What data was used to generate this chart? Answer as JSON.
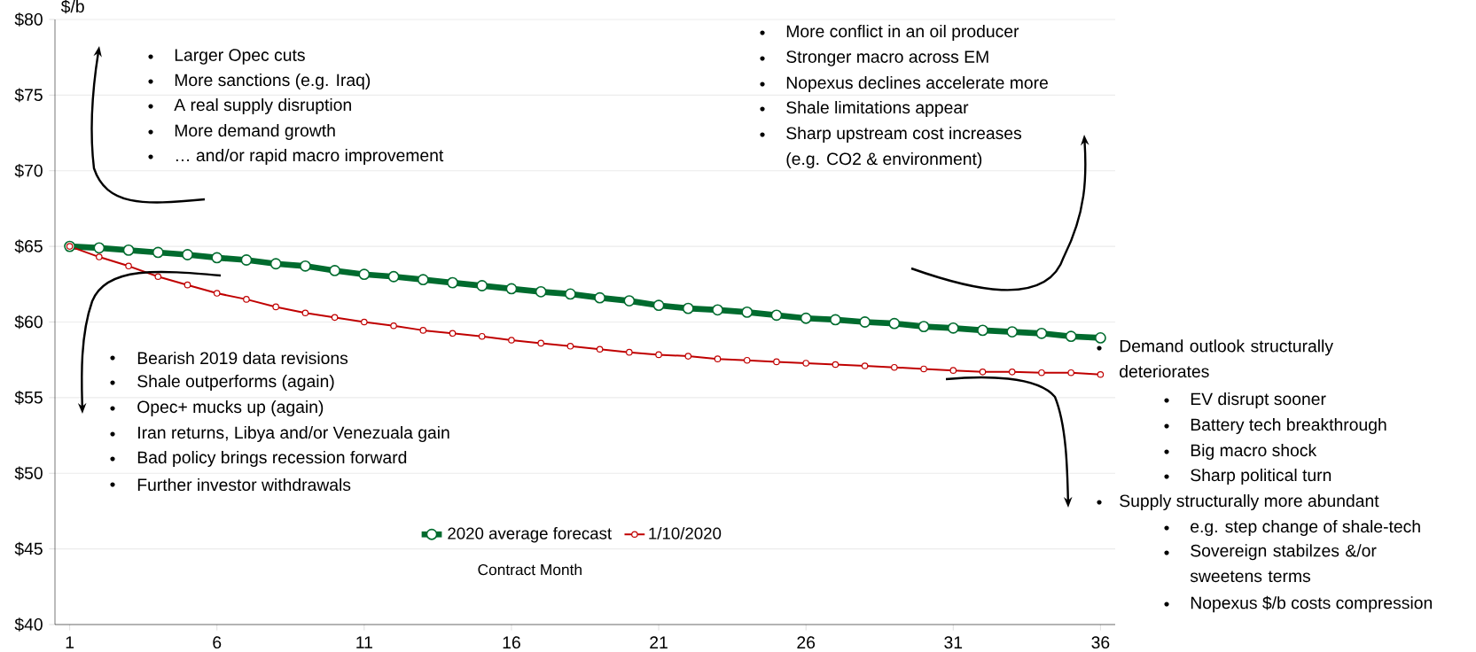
{
  "chart_data": {
    "type": "line",
    "xlabel": "Contract Month",
    "ylabel": "$/b",
    "x": [
      1,
      2,
      3,
      4,
      5,
      6,
      7,
      8,
      9,
      10,
      11,
      12,
      13,
      14,
      15,
      16,
      17,
      18,
      19,
      20,
      21,
      22,
      23,
      24,
      25,
      26,
      27,
      28,
      29,
      30,
      31,
      32,
      33,
      34,
      35,
      36
    ],
    "series": [
      {
        "name": "2020 average forecast",
        "color": "#006b2e",
        "values": [
          65,
          64.9,
          64.75,
          64.6,
          64.45,
          64.25,
          64.1,
          63.85,
          63.7,
          63.4,
          63.15,
          63.0,
          62.8,
          62.6,
          62.4,
          62.2,
          62.0,
          61.85,
          61.6,
          61.4,
          61.1,
          60.9,
          60.8,
          60.65,
          60.45,
          60.25,
          60.15,
          60.0,
          59.9,
          59.7,
          59.6,
          59.45,
          59.35,
          59.25,
          59.05,
          58.95
        ]
      },
      {
        "name": "1/10/2020",
        "color": "#c00000",
        "values": [
          65,
          64.3,
          63.7,
          63.0,
          62.45,
          61.9,
          61.5,
          61.0,
          60.6,
          60.3,
          60.0,
          59.75,
          59.45,
          59.25,
          59.05,
          58.8,
          58.6,
          58.4,
          58.2,
          58.0,
          57.84,
          57.74,
          57.56,
          57.47,
          57.37,
          57.28,
          57.19,
          57.1,
          57.0,
          56.9,
          56.8,
          56.7,
          56.7,
          56.65,
          56.65,
          56.53
        ]
      }
    ],
    "xlim": [
      0.5,
      36.5
    ],
    "ylim": [
      40,
      80
    ],
    "xticks": [
      1,
      6,
      11,
      16,
      21,
      26,
      31,
      36
    ],
    "yticks": [
      {
        "value": 40,
        "label": "$40"
      },
      {
        "value": 45,
        "label": "$45"
      },
      {
        "value": 50,
        "label": "$50"
      },
      {
        "value": 55,
        "label": "$55"
      },
      {
        "value": 60,
        "label": "$60"
      },
      {
        "value": 65,
        "label": "$65"
      },
      {
        "value": 70,
        "label": "$70"
      },
      {
        "value": 75,
        "label": "$75"
      },
      {
        "value": 80,
        "label": "$80"
      }
    ],
    "grid": "y",
    "legend": "bottom",
    "marker": "circle",
    "line_style": "solid",
    "annotations": [
      "Larger Opec cuts",
      "More sanctions (e.g. Iraq)",
      "A real supply disruption",
      "More demand growth",
      "… and/or rapid macro improvement",
      "More conflict in an oil producer",
      "Stronger macro across EM",
      "Nopexus declines accelerate more",
      "Shale limitations appear",
      "Sharp upstream cost increases",
      "(e.g. CO2 & environment)",
      "Bearish 2019 data revisions",
      "Shale outperforms (again)",
      "Opec+ mucks up (again)",
      "Iran returns, Libya and/or Venezuala gain",
      "Bad policy brings recession forward",
      "Further investor withdrawals",
      "Demand outlook structurally deteriorates",
      "EV disrupt sooner",
      "Battery tech breakthrough",
      "Big macro shock",
      "Sharp political turn",
      "Supply structurally more abundant",
      "e.g. step change of shale-tech",
      "Sovereign stabilzes &/or sweetens terms",
      "Nopexus $/b costs compression"
    ]
  }
}
